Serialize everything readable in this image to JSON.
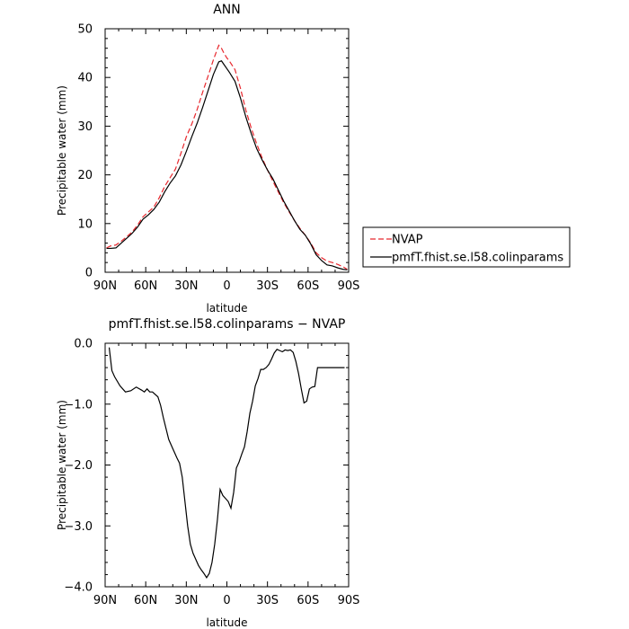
{
  "chart_data": [
    {
      "type": "line",
      "title": "ANN",
      "xlabel": "latitude",
      "ylabel": "Precipitable water (mm)",
      "xlim": [
        90,
        -90
      ],
      "ylim": [
        0,
        50
      ],
      "x_tick_values": [
        90,
        60,
        30,
        0,
        -30,
        -60,
        -90
      ],
      "x_tick_labels": [
        "90N",
        "60N",
        "30N",
        "0",
        "30S",
        "60S",
        "90S"
      ],
      "y_ticks": [
        0,
        10,
        20,
        30,
        40,
        50
      ],
      "y_tick_labels": [
        "0",
        "10",
        "20",
        "30",
        "40",
        "50"
      ],
      "grid": false,
      "legend_position": "right",
      "series": [
        {
          "name": "NVAP",
          "color": "#e8282e",
          "dash": "dashed",
          "x": [
            89,
            86,
            82,
            78,
            74,
            70,
            66,
            62,
            58,
            54,
            50,
            46,
            42,
            38,
            34,
            30,
            26,
            22,
            18,
            14,
            10,
            6,
            4,
            2,
            0,
            -2,
            -6,
            -10,
            -14,
            -18,
            -22,
            -26,
            -30,
            -34,
            -38,
            -42,
            -46,
            -50,
            -54,
            -58,
            -62,
            -66,
            -70,
            -74,
            -78,
            -82,
            -86,
            -89
          ],
          "y": [
            5.0,
            5.4,
            5.6,
            6.4,
            7.3,
            8.3,
            9.7,
            11.4,
            12.4,
            13.4,
            15.3,
            17.6,
            19.4,
            21.2,
            24.4,
            27.8,
            30.4,
            33.4,
            36.9,
            40.2,
            43.6,
            46.6,
            46.0,
            44.9,
            44.0,
            43.3,
            41.6,
            37.8,
            33.3,
            29.6,
            26.4,
            23.5,
            21.0,
            18.7,
            16.5,
            14.3,
            12.4,
            10.6,
            9.0,
            7.6,
            6.0,
            4.0,
            3.0,
            2.3,
            2.0,
            1.6,
            1.1,
            0.6
          ]
        },
        {
          "name": "pmfT.fhist.se.l58.colinparams",
          "color": "#000000",
          "dash": "solid",
          "x": [
            89,
            86,
            82,
            78,
            74,
            70,
            66,
            62,
            58,
            54,
            50,
            46,
            42,
            38,
            34,
            30,
            26,
            22,
            18,
            14,
            10,
            6,
            4,
            2,
            0,
            -2,
            -6,
            -10,
            -14,
            -18,
            -22,
            -26,
            -30,
            -34,
            -38,
            -42,
            -46,
            -50,
            -54,
            -58,
            -62,
            -66,
            -70,
            -74,
            -78,
            -82,
            -86,
            -89
          ],
          "y": [
            4.9,
            4.9,
            5.0,
            6.0,
            7.0,
            8.0,
            9.3,
            10.9,
            11.8,
            12.9,
            14.4,
            16.5,
            18.3,
            19.8,
            22.0,
            24.8,
            27.8,
            30.6,
            33.8,
            37.2,
            40.6,
            43.2,
            43.4,
            42.6,
            41.8,
            41.0,
            39.2,
            35.8,
            31.9,
            28.5,
            25.4,
            23.1,
            21.0,
            19.2,
            16.9,
            14.6,
            12.6,
            10.6,
            8.8,
            7.6,
            5.8,
            3.6,
            2.4,
            1.5,
            1.3,
            0.9,
            0.6,
            0.5
          ]
        }
      ]
    },
    {
      "type": "line",
      "title": "pmfT.fhist.se.l58.colinparams − NVAP",
      "xlabel": "latitude",
      "ylabel": "Precipitable water (mm)",
      "xlim": [
        90,
        -90
      ],
      "ylim": [
        -4.0,
        0.0
      ],
      "x_tick_values": [
        90,
        60,
        30,
        0,
        -30,
        -60,
        -90
      ],
      "x_tick_labels": [
        "90N",
        "60N",
        "30N",
        "0",
        "30S",
        "60S",
        "90S"
      ],
      "y_ticks": [
        0.0,
        -1.0,
        -2.0,
        -3.0,
        -4.0
      ],
      "y_tick_labels": [
        "0.0",
        "−1.0",
        "−2.0",
        "−3.0",
        "−4.0"
      ],
      "grid": false,
      "series": [
        {
          "color": "#000000",
          "dash": "solid",
          "x": [
            87,
            85,
            83,
            79,
            75,
            71,
            67,
            63,
            61,
            59,
            57,
            55,
            51,
            49,
            47,
            45,
            43,
            41,
            39,
            37,
            35,
            33,
            31,
            29,
            27,
            25,
            23,
            21,
            19,
            17,
            15,
            13,
            11,
            9,
            7,
            5,
            3,
            1,
            -1,
            -3,
            -5,
            -7,
            -9,
            -11,
            -13,
            -15,
            -17,
            -19,
            -21,
            -23,
            -25,
            -27,
            -29,
            -31,
            -33,
            -35,
            -37,
            -39,
            -41,
            -43,
            -45,
            -47,
            -49,
            -51,
            -53,
            -55,
            -57,
            -59,
            -61,
            -63,
            -65,
            -67,
            -69,
            -71,
            -73,
            -75,
            -77,
            -79,
            -81,
            -83,
            -85,
            -87
          ],
          "y": [
            -0.07,
            -0.45,
            -0.55,
            -0.7,
            -0.8,
            -0.78,
            -0.72,
            -0.77,
            -0.8,
            -0.75,
            -0.8,
            -0.8,
            -0.88,
            -1.02,
            -1.22,
            -1.4,
            -1.58,
            -1.68,
            -1.78,
            -1.88,
            -1.97,
            -2.2,
            -2.6,
            -3.0,
            -3.3,
            -3.45,
            -3.55,
            -3.65,
            -3.72,
            -3.78,
            -3.85,
            -3.78,
            -3.6,
            -3.3,
            -2.9,
            -2.4,
            -2.5,
            -2.55,
            -2.6,
            -2.71,
            -2.45,
            -2.05,
            -1.95,
            -1.82,
            -1.7,
            -1.45,
            -1.15,
            -0.95,
            -0.7,
            -0.58,
            -0.43,
            -0.43,
            -0.4,
            -0.35,
            -0.26,
            -0.16,
            -0.1,
            -0.12,
            -0.14,
            -0.11,
            -0.12,
            -0.11,
            -0.15,
            -0.3,
            -0.5,
            -0.75,
            -0.98,
            -0.95,
            -0.75,
            -0.72,
            -0.71,
            -0.4,
            -0.4,
            -0.4,
            -0.4,
            -0.4,
            -0.4,
            -0.4,
            -0.4,
            -0.4,
            -0.4,
            -0.4
          ]
        }
      ]
    }
  ]
}
